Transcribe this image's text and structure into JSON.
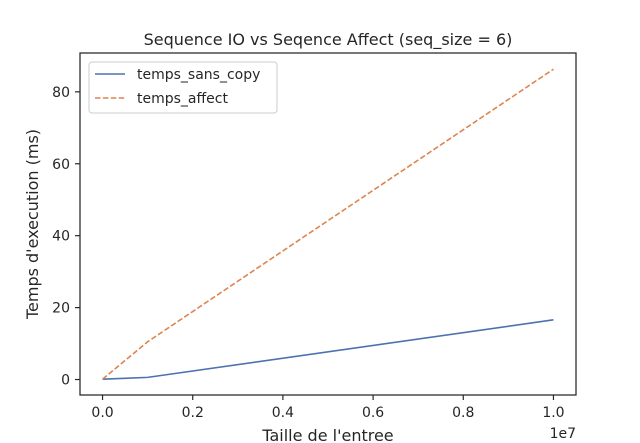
{
  "chart_data": {
    "type": "line",
    "title": "Sequence IO vs Seqence Affect (seq_size = 6)",
    "xlabel": "Taille de l'entree",
    "ylabel": "Temps d'execution (ms)",
    "x_offset_label": "1e7",
    "x": [
      0,
      1000000,
      10000000
    ],
    "xlim": [
      -500000,
      10500000
    ],
    "ylim": [
      -4.3,
      90.8
    ],
    "xticks": [
      0,
      2000000,
      4000000,
      6000000,
      8000000,
      10000000
    ],
    "xtick_labels": [
      "0.0",
      "0.2",
      "0.4",
      "0.6",
      "0.8",
      "1.0"
    ],
    "yticks": [
      0,
      20,
      40,
      60,
      80
    ],
    "ytick_labels": [
      "0",
      "20",
      "40",
      "60",
      "80"
    ],
    "grid": false,
    "legend_position": "top-left",
    "series": [
      {
        "name": "temps_sans_copy",
        "values": [
          0.1,
          0.6,
          16.6
        ],
        "color": "#4c72b0",
        "style": "solid"
      },
      {
        "name": "temps_affect",
        "values": [
          0.1,
          10.5,
          86.3
        ],
        "color": "#dd8452",
        "style": "dashed"
      }
    ]
  }
}
